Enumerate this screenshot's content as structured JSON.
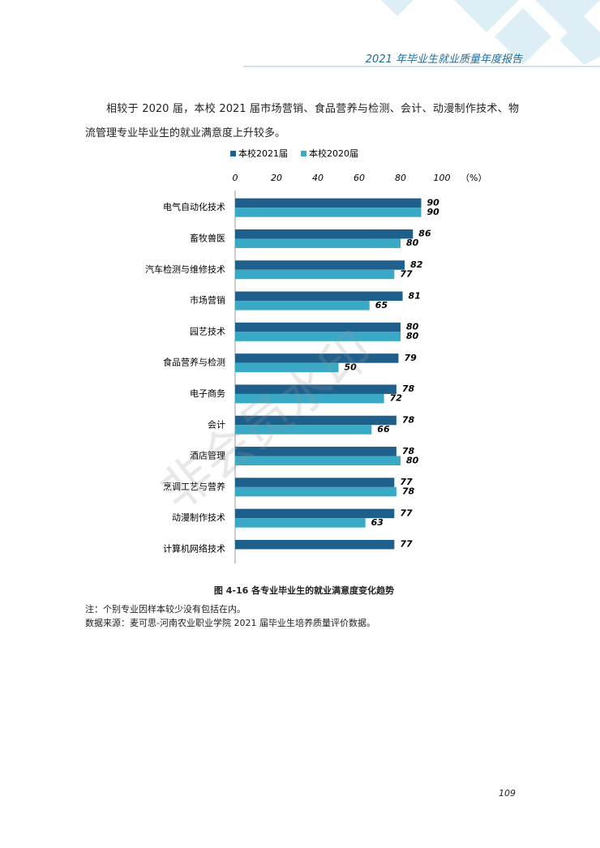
{
  "header": {
    "title": "2021 年毕业生就业质量年度报告"
  },
  "paragraph": "相较于 2020 届，本校 2021 届市场营销、食品营养与检测、会计、动漫制作技术、物流管理专业毕业生的就业满意度上升较多。",
  "chart_data": {
    "type": "hbar",
    "xlabel": "（%）",
    "categories": [
      "电气自动化技术",
      "畜牧兽医",
      "汽车检测与维修技术",
      "市场营销",
      "园艺技术",
      "食品营养与检测",
      "电子商务",
      "会计",
      "酒店管理",
      "烹调工艺与营养",
      "动漫制作技术",
      "计算机网络技术"
    ],
    "series": [
      {
        "name": "本校2021届",
        "color": "#1f5f8b",
        "values": [
          90,
          86,
          82,
          81,
          80,
          79,
          78,
          78,
          78,
          77,
          77,
          77
        ]
      },
      {
        "name": "本校2020届",
        "color": "#3aa9c6",
        "values": [
          90,
          80,
          77,
          65,
          80,
          50,
          72,
          66,
          80,
          78,
          63,
          null
        ]
      }
    ],
    "xlim": [
      0,
      100
    ],
    "xticks": [
      0,
      20,
      40,
      60,
      80,
      100
    ]
  },
  "caption": "图 4-16    各专业毕业生的就业满意度变化趋势",
  "notes": [
    "注：个别专业因样本较少没有包括在内。",
    "数据来源：麦可思-河南农业职业学院 2021 届毕业生培养质量评价数据。"
  ],
  "watermark": "非会员水印",
  "page_number": "109"
}
